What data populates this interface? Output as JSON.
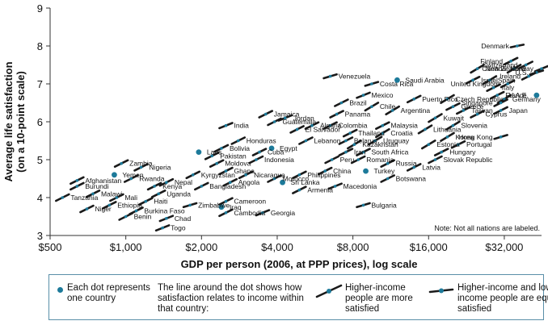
{
  "chart_data": {
    "type": "scatter",
    "xlabel": "GDP per person (2006, at PPP prices), log scale",
    "ylabel": "Average life satisfaction\n(on a 10-point scale)",
    "x_scale": "log2",
    "xlim": [
      500,
      45000
    ],
    "ylim": [
      3,
      9
    ],
    "x_ticks": [
      {
        "value": 500,
        "label": "$500"
      },
      {
        "value": 1000,
        "label": "$1,000"
      },
      {
        "value": 2000,
        "label": "$2,000"
      },
      {
        "value": 4000,
        "label": "$4,000"
      },
      {
        "value": 8000,
        "label": "$8,000"
      },
      {
        "value": 16000,
        "label": "$16,000"
      },
      {
        "value": 32000,
        "label": "$32,000"
      }
    ],
    "y_ticks": [
      3,
      4,
      5,
      6,
      7,
      8,
      9
    ],
    "note": "Note: Not all nations are labeled.",
    "dot_color": "#1d7a9a",
    "line_color": "#1a1a1a",
    "points": [
      {
        "name": "Denmark",
        "x": 36000,
        "y": 8.0,
        "slope": 0.2
      },
      {
        "name": "Finland",
        "x": 34000,
        "y": 7.6,
        "slope": 0.5
      },
      {
        "name": "Switzerland",
        "x": 39000,
        "y": 7.5,
        "slope": 0.5
      },
      {
        "name": "Norway",
        "x": 45000,
        "y": 7.4,
        "slope": 0.4
      },
      {
        "name": "Canada",
        "x": 35000,
        "y": 7.4,
        "slope": 0.6
      },
      {
        "name": "U.S.",
        "x": 43000,
        "y": 7.3,
        "slope": 0.3
      },
      {
        "name": "Ireland",
        "x": 40000,
        "y": 7.2,
        "slope": 0.5
      },
      {
        "name": "New Zealand",
        "x": 25000,
        "y": 7.4,
        "slope": 0.6
      },
      {
        "name": "Israel",
        "x": 24000,
        "y": 7.1,
        "slope": 0.5
      },
      {
        "name": "Spain",
        "x": 28000,
        "y": 7.1,
        "slope": 0.6
      },
      {
        "name": "Italy",
        "x": 29000,
        "y": 6.9,
        "slope": 0.5
      },
      {
        "name": "United Kingdom",
        "x": 33000,
        "y": 7.0,
        "slope": 0.5
      },
      {
        "name": "France",
        "x": 30000,
        "y": 6.7,
        "slope": 0.5
      },
      {
        "name": "Germany",
        "x": 32000,
        "y": 6.6,
        "slope": 0.6
      },
      {
        "name": "Singapore",
        "x": 31000,
        "y": 6.5,
        "slope": 0.5
      },
      {
        "name": "U.A.E.",
        "x": 43000,
        "y": 6.7,
        "slope": 0.3,
        "dot": true
      },
      {
        "name": "Japan",
        "x": 31000,
        "y": 6.3,
        "slope": 0.5
      },
      {
        "name": "Cyprus",
        "x": 25000,
        "y": 6.2,
        "slope": 0.5
      },
      {
        "name": "Taiwan",
        "x": 22000,
        "y": 6.3,
        "slope": 0.5
      },
      {
        "name": "Greece",
        "x": 20000,
        "y": 6.4,
        "slope": 0.5
      },
      {
        "name": "Czech Republic",
        "x": 19000,
        "y": 6.6,
        "slope": 0.6
      },
      {
        "name": "Puerto Rico",
        "x": 14000,
        "y": 6.6,
        "slope": 0.5
      },
      {
        "name": "Saudi Arabia",
        "x": 12000,
        "y": 7.1,
        "slope": 0.4,
        "dot": true
      },
      {
        "name": "Costa Rica",
        "x": 9500,
        "y": 7.0,
        "slope": 0.3
      },
      {
        "name": "Venezuela",
        "x": 6500,
        "y": 7.2,
        "slope": 0.3
      },
      {
        "name": "Mexico",
        "x": 8800,
        "y": 6.7,
        "slope": 0.4
      },
      {
        "name": "Brazil",
        "x": 7200,
        "y": 6.5,
        "slope": 0.5
      },
      {
        "name": "Chile",
        "x": 9500,
        "y": 6.4,
        "slope": 0.6
      },
      {
        "name": "Argentina",
        "x": 11500,
        "y": 6.3,
        "slope": 0.6
      },
      {
        "name": "Kuwait",
        "x": 17000,
        "y": 6.1,
        "slope": 0.6
      },
      {
        "name": "Slovenia",
        "x": 20000,
        "y": 5.9,
        "slope": 0.6
      },
      {
        "name": "Lithuania",
        "x": 15500,
        "y": 5.8,
        "slope": 0.6
      },
      {
        "name": "Korea",
        "x": 19000,
        "y": 5.6,
        "slope": 0.6
      },
      {
        "name": "Portugal",
        "x": 21000,
        "y": 5.4,
        "slope": 0.5
      },
      {
        "name": "Estonia",
        "x": 16000,
        "y": 5.4,
        "slope": 0.6
      },
      {
        "name": "Hungary",
        "x": 18000,
        "y": 5.2,
        "slope": 0.5
      },
      {
        "name": "Slovak Republic",
        "x": 17000,
        "y": 5.0,
        "slope": 0.5
      },
      {
        "name": "Hong Kong",
        "x": 31000,
        "y": 5.6,
        "slope": 0.3
      },
      {
        "name": "Latvia",
        "x": 14000,
        "y": 4.8,
        "slope": 0.5
      },
      {
        "name": "Jamaica",
        "x": 3600,
        "y": 6.2,
        "slope": 0.5
      },
      {
        "name": "Jordan",
        "x": 4300,
        "y": 6.1,
        "slope": 0.4
      },
      {
        "name": "Guatemala",
        "x": 3900,
        "y": 6.0,
        "slope": 0.5
      },
      {
        "name": "Panama",
        "x": 6900,
        "y": 6.2,
        "slope": 0.5
      },
      {
        "name": "Colombia",
        "x": 6500,
        "y": 5.9,
        "slope": 0.5
      },
      {
        "name": "Malaysia",
        "x": 10500,
        "y": 5.9,
        "slope": 0.5
      },
      {
        "name": "Croatia",
        "x": 10500,
        "y": 5.7,
        "slope": 0.6
      },
      {
        "name": "Uruguay",
        "x": 9800,
        "y": 5.5,
        "slope": 0.6
      },
      {
        "name": "Thailand",
        "x": 7800,
        "y": 5.7,
        "slope": 0.5
      },
      {
        "name": "Belarus",
        "x": 7500,
        "y": 5.5,
        "slope": 0.5
      },
      {
        "name": "Kazakhstan",
        "x": 8100,
        "y": 5.4,
        "slope": 0.6
      },
      {
        "name": "Iran",
        "x": 7500,
        "y": 5.2,
        "slope": 0.5
      },
      {
        "name": "South Africa",
        "x": 8800,
        "y": 5.2,
        "slope": 0.5
      },
      {
        "name": "Romania",
        "x": 8400,
        "y": 5.0,
        "slope": 0.5
      },
      {
        "name": "Russia",
        "x": 11000,
        "y": 4.9,
        "slope": 0.5
      },
      {
        "name": "Algeria",
        "x": 5500,
        "y": 5.9,
        "slope": 0.5
      },
      {
        "name": "El Salvador",
        "x": 4800,
        "y": 5.8,
        "slope": 0.5
      },
      {
        "name": "Lebanon",
        "x": 5200,
        "y": 5.5,
        "slope": 0.5
      },
      {
        "name": "India",
        "x": 2500,
        "y": 5.9,
        "slope": 0.4
      },
      {
        "name": "Honduras",
        "x": 2800,
        "y": 5.5,
        "slope": 0.5
      },
      {
        "name": "Bolivia",
        "x": 2400,
        "y": 5.3,
        "slope": 0.5
      },
      {
        "name": "Cuba",
        "x": 3400,
        "y": 5.2,
        "slope": 0.5
      },
      {
        "name": "Egypt",
        "x": 3800,
        "y": 5.3,
        "slope": 0.4,
        "dot": true
      },
      {
        "name": "Laos",
        "x": 1950,
        "y": 5.2,
        "slope": 0.4,
        "dot": true
      },
      {
        "name": "Pakistan",
        "x": 2200,
        "y": 5.1,
        "slope": 0.5
      },
      {
        "name": "Moldova",
        "x": 2300,
        "y": 4.9,
        "slope": 0.5
      },
      {
        "name": "Indonesia",
        "x": 3300,
        "y": 5.0,
        "slope": 0.5
      },
      {
        "name": "Ghana",
        "x": 2500,
        "y": 4.7,
        "slope": 0.5
      },
      {
        "name": "Kyrgyzstan",
        "x": 1850,
        "y": 4.6,
        "slope": 0.5
      },
      {
        "name": "Nicaragua",
        "x": 3000,
        "y": 4.6,
        "slope": 0.5
      },
      {
        "name": "Morocco",
        "x": 3900,
        "y": 4.5,
        "slope": 0.5
      },
      {
        "name": "Peru",
        "x": 6600,
        "y": 5.0,
        "slope": 0.5
      },
      {
        "name": "China",
        "x": 6200,
        "y": 4.7,
        "slope": 0.5
      },
      {
        "name": "Philippines",
        "x": 4900,
        "y": 4.6,
        "slope": 0.5
      },
      {
        "name": "Macedonia",
        "x": 6800,
        "y": 4.3,
        "slope": 0.4
      },
      {
        "name": "Turkey",
        "x": 9000,
        "y": 4.7,
        "slope": 0.4,
        "dot": true
      },
      {
        "name": "Botswana",
        "x": 11000,
        "y": 4.5,
        "slope": 0.5
      },
      {
        "name": "Sri Lanka",
        "x": 4200,
        "y": 4.4,
        "slope": 0.4,
        "dot": true
      },
      {
        "name": "Armenia",
        "x": 4900,
        "y": 4.2,
        "slope": 0.5
      },
      {
        "name": "Bulgaria",
        "x": 8800,
        "y": 3.8,
        "slope": 0.3
      },
      {
        "name": "Angola",
        "x": 2600,
        "y": 4.4,
        "slope": 0.5
      },
      {
        "name": "Bangladesh",
        "x": 2000,
        "y": 4.3,
        "slope": 0.5
      },
      {
        "name": "Cameroon",
        "x": 2500,
        "y": 3.9,
        "slope": 0.5
      },
      {
        "name": "Iraq",
        "x": 2400,
        "y": 3.75,
        "slope": 0.3,
        "dot": true
      },
      {
        "name": "Cambodia",
        "x": 2500,
        "y": 3.6,
        "slope": 0.5
      },
      {
        "name": "Georgia",
        "x": 3500,
        "y": 3.6,
        "slope": 0.4
      },
      {
        "name": "Zimbabwe",
        "x": 1800,
        "y": 3.8,
        "slope": 0.3
      },
      {
        "name": "Zambia",
        "x": 960,
        "y": 4.9,
        "slope": 0.5
      },
      {
        "name": "Nigeria",
        "x": 1150,
        "y": 4.8,
        "slope": 0.5
      },
      {
        "name": "Yemen",
        "x": 900,
        "y": 4.6,
        "slope": 0.4,
        "dot": true
      },
      {
        "name": "Rwanda",
        "x": 1050,
        "y": 4.5,
        "slope": 0.5
      },
      {
        "name": "Nepal",
        "x": 1450,
        "y": 4.4,
        "slope": 0.5
      },
      {
        "name": "Kenya",
        "x": 1300,
        "y": 4.3,
        "slope": 0.5
      },
      {
        "name": "Burundi",
        "x": 640,
        "y": 4.3,
        "slope": 0.5
      },
      {
        "name": "Afghanistan",
        "x": 640,
        "y": 4.45,
        "slope": 0.5
      },
      {
        "name": "Malawi",
        "x": 740,
        "y": 4.1,
        "slope": 0.5
      },
      {
        "name": "Mali",
        "x": 920,
        "y": 4.0,
        "slope": 0.5
      },
      {
        "name": "Uganda",
        "x": 1350,
        "y": 4.1,
        "slope": 0.5
      },
      {
        "name": "Tanzania",
        "x": 560,
        "y": 4.0,
        "slope": 0.5
      },
      {
        "name": "Ethiopia",
        "x": 860,
        "y": 3.8,
        "slope": 0.5
      },
      {
        "name": "Haiti",
        "x": 1200,
        "y": 3.9,
        "slope": 0.5
      },
      {
        "name": "Niger",
        "x": 700,
        "y": 3.7,
        "slope": 0.5
      },
      {
        "name": "Burkina Faso",
        "x": 1100,
        "y": 3.65,
        "slope": 0.5
      },
      {
        "name": "Benin",
        "x": 1000,
        "y": 3.5,
        "slope": 0.5
      },
      {
        "name": "Chad",
        "x": 1450,
        "y": 3.45,
        "slope": 0.4
      },
      {
        "name": "Togo",
        "x": 1400,
        "y": 3.2,
        "slope": 0.4
      }
    ]
  },
  "legend": {
    "dot_text": "Each dot represents\none country",
    "line_text": "The line around the dot shows how\nsatisfaction relates to income within\nthat country:",
    "higher_text": "Higher-income\npeople are more\nsatisfied",
    "equal_text": "Higher-income and lower-\nincome people are equally\nsatisfied"
  }
}
